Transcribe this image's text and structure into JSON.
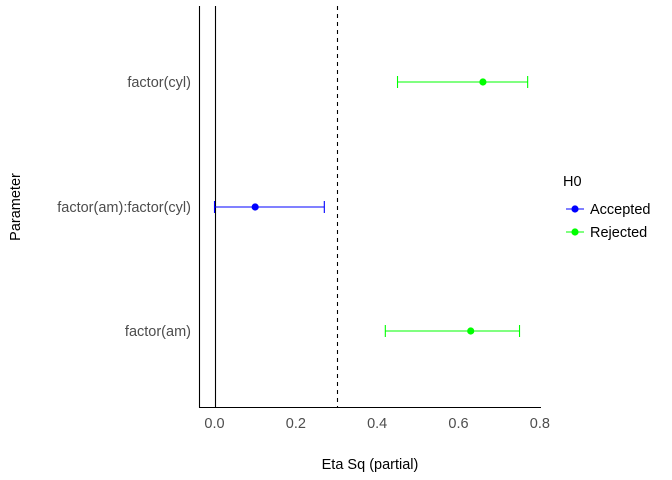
{
  "chart_data": {
    "type": "forest",
    "title": "",
    "xlabel": "Eta Sq (partial)",
    "ylabel": "Parameter",
    "xlim": [
      -0.035,
      0.805
    ],
    "x_ticks": [
      0.0,
      0.2,
      0.4,
      0.6,
      0.8
    ],
    "x_tick_labels": [
      "0.0",
      "0.2",
      "0.4",
      "0.6",
      "0.8"
    ],
    "reference_lines": [
      {
        "value": 0.0,
        "style": "solid"
      },
      {
        "value": 0.3,
        "style": "dashed"
      }
    ],
    "categories": [
      "factor(cyl)",
      "factor(am):factor(cyl)",
      "factor(am)"
    ],
    "points": [
      {
        "parameter": "factor(cyl)",
        "estimate": 0.66,
        "ci_low": 0.45,
        "ci_high": 0.77,
        "h0": "Rejected"
      },
      {
        "parameter": "factor(am):factor(cyl)",
        "estimate": 0.1,
        "ci_low": 0.0,
        "ci_high": 0.27,
        "h0": "Accepted"
      },
      {
        "parameter": "factor(am)",
        "estimate": 0.63,
        "ci_low": 0.42,
        "ci_high": 0.75,
        "h0": "Rejected"
      }
    ],
    "legend": {
      "title": "H0",
      "position": "right",
      "entries": [
        {
          "label": "Accepted",
          "color": "#0000ff"
        },
        {
          "label": "Rejected",
          "color": "#00ff00"
        }
      ]
    },
    "grid": false
  }
}
